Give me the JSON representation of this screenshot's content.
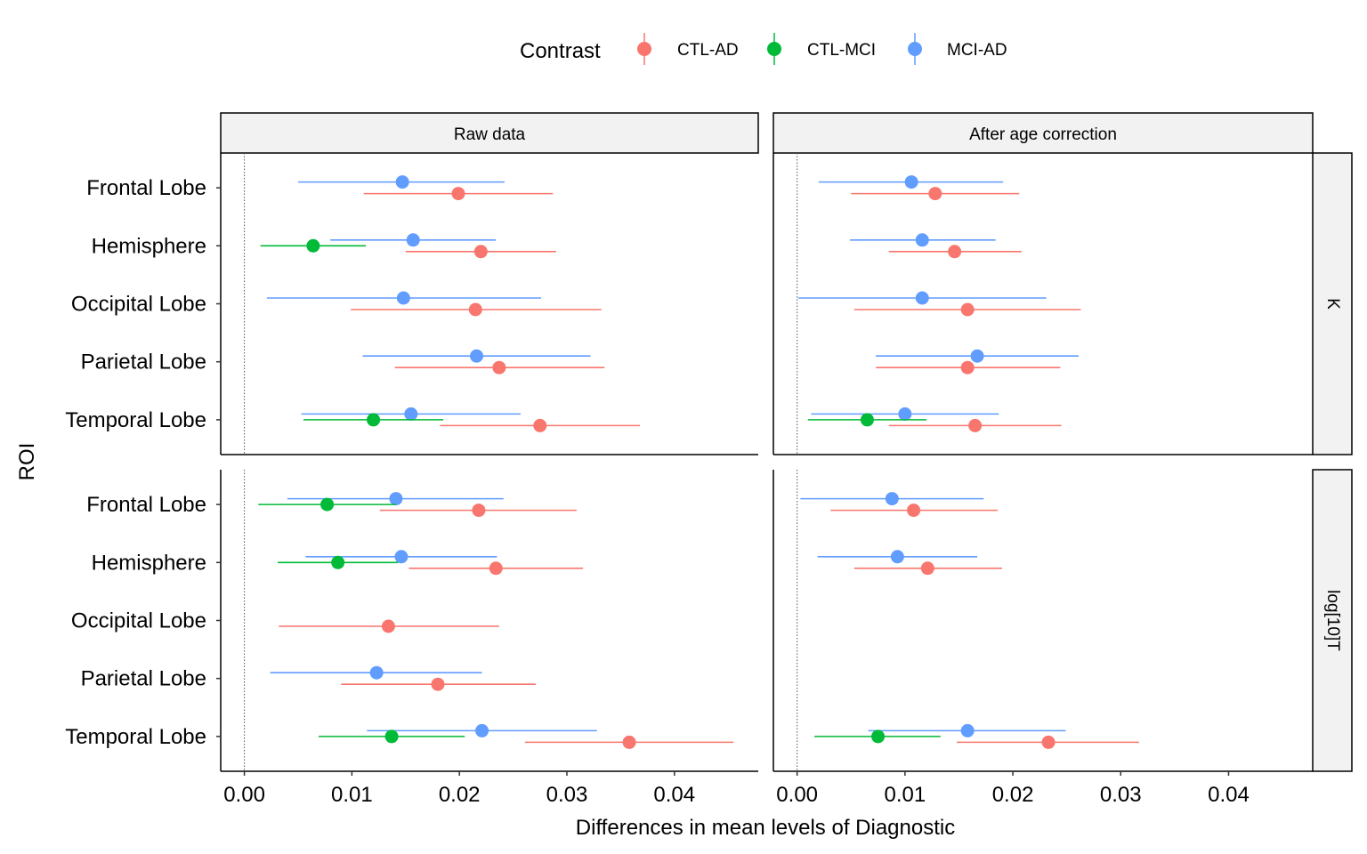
{
  "chart_data": {
    "type": "scatter",
    "subtype": "point-range (dot with error bar)",
    "legend": {
      "title": "Contrast",
      "placement": "top",
      "entries": [
        {
          "name": "CTL-AD",
          "color": "#F8766D"
        },
        {
          "name": "CTL-MCI",
          "color": "#00BA38"
        },
        {
          "name": "MCI-AD",
          "color": "#619CFF"
        }
      ]
    },
    "xlabel": "Differences in mean levels of Diagnostic",
    "ylabel": "ROI",
    "xlim": [
      -0.0022,
      0.0478
    ],
    "x_ticks": [
      "0.00",
      "0.01",
      "0.02",
      "0.03",
      "0.04"
    ],
    "x_tick_values": [
      0,
      0.01,
      0.02,
      0.03,
      0.04
    ],
    "reference_line_x": 0,
    "grid": false,
    "categories": [
      "Frontal Lobe",
      "Hemisphere",
      "Occipital Lobe",
      "Parietal Lobe",
      "Temporal Lobe"
    ],
    "facet_columns": [
      "Raw data",
      "After age correction"
    ],
    "facet_rows": [
      "K",
      "log[10]T"
    ],
    "panels": [
      {
        "column": "Raw data",
        "row": "K",
        "points": [
          {
            "roi": "Frontal Lobe",
            "contrast": "MCI-AD",
            "estimate": 0.0147,
            "lower": 0.005,
            "upper": 0.0242
          },
          {
            "roi": "Frontal Lobe",
            "contrast": "CTL-AD",
            "estimate": 0.0199,
            "lower": 0.0111,
            "upper": 0.0287
          },
          {
            "roi": "Hemisphere",
            "contrast": "MCI-AD",
            "estimate": 0.0157,
            "lower": 0.008,
            "upper": 0.0234
          },
          {
            "roi": "Hemisphere",
            "contrast": "CTL-MCI",
            "estimate": 0.0064,
            "lower": 0.0015,
            "upper": 0.0113
          },
          {
            "roi": "Hemisphere",
            "contrast": "CTL-AD",
            "estimate": 0.022,
            "lower": 0.015,
            "upper": 0.029
          },
          {
            "roi": "Occipital Lobe",
            "contrast": "MCI-AD",
            "estimate": 0.0148,
            "lower": 0.0021,
            "upper": 0.0276
          },
          {
            "roi": "Occipital Lobe",
            "contrast": "CTL-AD",
            "estimate": 0.0215,
            "lower": 0.0099,
            "upper": 0.0332
          },
          {
            "roi": "Parietal Lobe",
            "contrast": "MCI-AD",
            "estimate": 0.0216,
            "lower": 0.011,
            "upper": 0.0322
          },
          {
            "roi": "Parietal Lobe",
            "contrast": "CTL-AD",
            "estimate": 0.0237,
            "lower": 0.014,
            "upper": 0.0335
          },
          {
            "roi": "Temporal Lobe",
            "contrast": "MCI-AD",
            "estimate": 0.0155,
            "lower": 0.0053,
            "upper": 0.0257
          },
          {
            "roi": "Temporal Lobe",
            "contrast": "CTL-MCI",
            "estimate": 0.012,
            "lower": 0.0055,
            "upper": 0.0185
          },
          {
            "roi": "Temporal Lobe",
            "contrast": "CTL-AD",
            "estimate": 0.0275,
            "lower": 0.0182,
            "upper": 0.0368
          }
        ]
      },
      {
        "column": "After age correction",
        "row": "K",
        "points": [
          {
            "roi": "Frontal Lobe",
            "contrast": "MCI-AD",
            "estimate": 0.0106,
            "lower": 0.002,
            "upper": 0.0191
          },
          {
            "roi": "Frontal Lobe",
            "contrast": "CTL-AD",
            "estimate": 0.0128,
            "lower": 0.005,
            "upper": 0.0206
          },
          {
            "roi": "Hemisphere",
            "contrast": "MCI-AD",
            "estimate": 0.0116,
            "lower": 0.0049,
            "upper": 0.0184
          },
          {
            "roi": "Hemisphere",
            "contrast": "CTL-AD",
            "estimate": 0.0146,
            "lower": 0.0085,
            "upper": 0.0208
          },
          {
            "roi": "Occipital Lobe",
            "contrast": "MCI-AD",
            "estimate": 0.0116,
            "lower": 0.0001,
            "upper": 0.0231
          },
          {
            "roi": "Occipital Lobe",
            "contrast": "CTL-AD",
            "estimate": 0.0158,
            "lower": 0.0053,
            "upper": 0.0263
          },
          {
            "roi": "Parietal Lobe",
            "contrast": "MCI-AD",
            "estimate": 0.0167,
            "lower": 0.0073,
            "upper": 0.0261
          },
          {
            "roi": "Parietal Lobe",
            "contrast": "CTL-AD",
            "estimate": 0.0158,
            "lower": 0.0073,
            "upper": 0.0244
          },
          {
            "roi": "Temporal Lobe",
            "contrast": "MCI-AD",
            "estimate": 0.01,
            "lower": 0.0013,
            "upper": 0.0187
          },
          {
            "roi": "Temporal Lobe",
            "contrast": "CTL-MCI",
            "estimate": 0.0065,
            "lower": 0.001,
            "upper": 0.012
          },
          {
            "roi": "Temporal Lobe",
            "contrast": "CTL-AD",
            "estimate": 0.0165,
            "lower": 0.0085,
            "upper": 0.0245
          }
        ]
      },
      {
        "column": "Raw data",
        "row": "log[10]T",
        "points": [
          {
            "roi": "Frontal Lobe",
            "contrast": "MCI-AD",
            "estimate": 0.0141,
            "lower": 0.004,
            "upper": 0.0241
          },
          {
            "roi": "Frontal Lobe",
            "contrast": "CTL-MCI",
            "estimate": 0.0077,
            "lower": 0.0013,
            "upper": 0.0141
          },
          {
            "roi": "Frontal Lobe",
            "contrast": "CTL-AD",
            "estimate": 0.0218,
            "lower": 0.0126,
            "upper": 0.0309
          },
          {
            "roi": "Hemisphere",
            "contrast": "MCI-AD",
            "estimate": 0.0146,
            "lower": 0.0057,
            "upper": 0.0235
          },
          {
            "roi": "Hemisphere",
            "contrast": "CTL-MCI",
            "estimate": 0.0087,
            "lower": 0.0031,
            "upper": 0.0143
          },
          {
            "roi": "Hemisphere",
            "contrast": "CTL-AD",
            "estimate": 0.0234,
            "lower": 0.0153,
            "upper": 0.0315
          },
          {
            "roi": "Occipital Lobe",
            "contrast": "CTL-AD",
            "estimate": 0.0134,
            "lower": 0.0032,
            "upper": 0.0237
          },
          {
            "roi": "Parietal Lobe",
            "contrast": "MCI-AD",
            "estimate": 0.0123,
            "lower": 0.0024,
            "upper": 0.0221
          },
          {
            "roi": "Parietal Lobe",
            "contrast": "CTL-AD",
            "estimate": 0.018,
            "lower": 0.009,
            "upper": 0.0271
          },
          {
            "roi": "Temporal Lobe",
            "contrast": "MCI-AD",
            "estimate": 0.0221,
            "lower": 0.0114,
            "upper": 0.0328
          },
          {
            "roi": "Temporal Lobe",
            "contrast": "CTL-MCI",
            "estimate": 0.0137,
            "lower": 0.0069,
            "upper": 0.0205
          },
          {
            "roi": "Temporal Lobe",
            "contrast": "CTL-AD",
            "estimate": 0.0358,
            "lower": 0.0261,
            "upper": 0.0455
          }
        ]
      },
      {
        "column": "After age correction",
        "row": "log[10]T",
        "points": [
          {
            "roi": "Frontal Lobe",
            "contrast": "MCI-AD",
            "estimate": 0.0088,
            "lower": 0.0003,
            "upper": 0.0173
          },
          {
            "roi": "Frontal Lobe",
            "contrast": "CTL-AD",
            "estimate": 0.0108,
            "lower": 0.0031,
            "upper": 0.0186
          },
          {
            "roi": "Hemisphere",
            "contrast": "MCI-AD",
            "estimate": 0.0093,
            "lower": 0.0019,
            "upper": 0.0167
          },
          {
            "roi": "Hemisphere",
            "contrast": "CTL-AD",
            "estimate": 0.0121,
            "lower": 0.0053,
            "upper": 0.019
          },
          {
            "roi": "Temporal Lobe",
            "contrast": "MCI-AD",
            "estimate": 0.0158,
            "lower": 0.0066,
            "upper": 0.0249
          },
          {
            "roi": "Temporal Lobe",
            "contrast": "CTL-MCI",
            "estimate": 0.0075,
            "lower": 0.0016,
            "upper": 0.0133
          },
          {
            "roi": "Temporal Lobe",
            "contrast": "CTL-AD",
            "estimate": 0.0233,
            "lower": 0.0148,
            "upper": 0.0317
          }
        ]
      }
    ]
  }
}
